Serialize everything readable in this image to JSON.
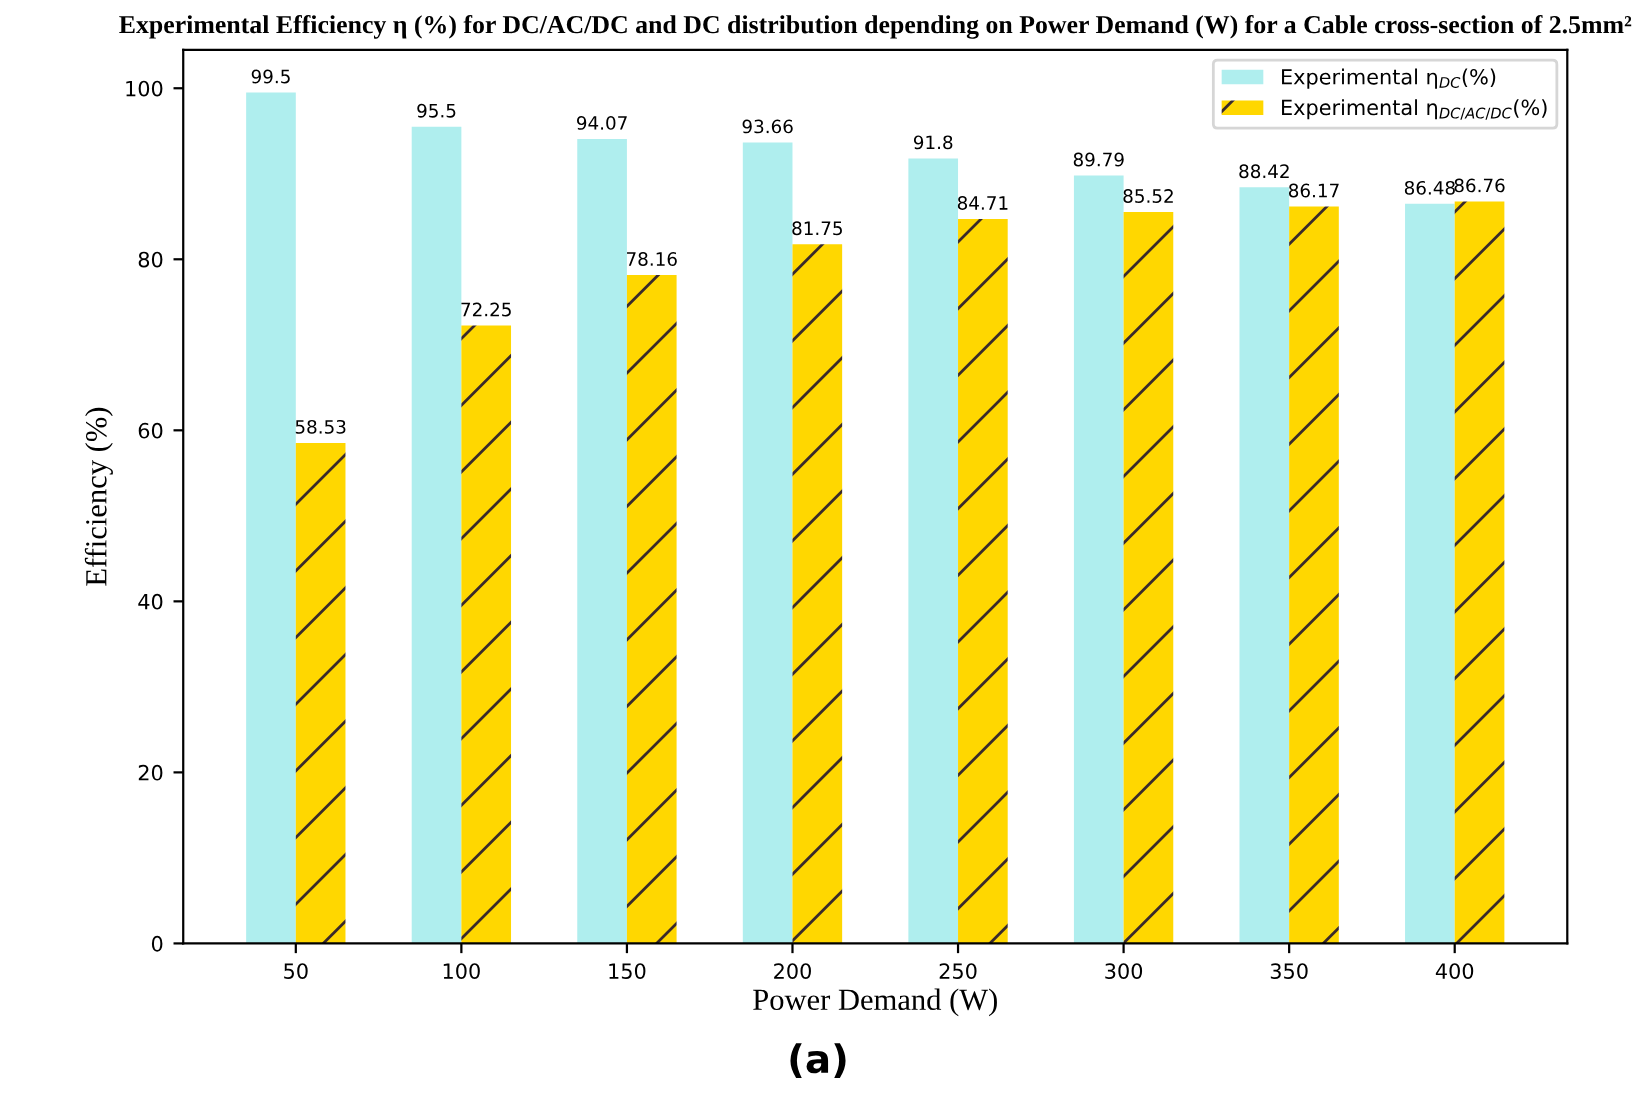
{
  "chart_data": {
    "type": "bar",
    "title": "Experimental Efficiency η (%) for DC/AC/DC and DC distribution depending on Power Demand (W) for a Cable cross-section of 2.5mm²",
    "xlabel": "Power Demand (W)",
    "ylabel": "Efficiency (%)",
    "categories": [
      "50",
      "100",
      "150",
      "200",
      "250",
      "300",
      "350",
      "400"
    ],
    "series": [
      {
        "name": "Experimental η$_{DC}$(%)",
        "color": "#afeeee",
        "values": [
          99.5,
          95.5,
          94.07,
          93.66,
          91.8,
          89.79,
          88.42,
          86.48
        ]
      },
      {
        "name": "Experimental η$_{DC/AC/DC}$(%)",
        "color": "#ffd700",
        "values": [
          58.53,
          72.25,
          78.16,
          81.75,
          84.71,
          85.52,
          86.17,
          86.76
        ]
      }
    ],
    "ylim": [
      0,
      104.5
    ],
    "yticks": [
      0,
      20,
      40,
      60,
      80,
      100
    ],
    "data_labels": true,
    "legend": "top right",
    "grid": false,
    "annotations": [
      "(a)"
    ]
  }
}
